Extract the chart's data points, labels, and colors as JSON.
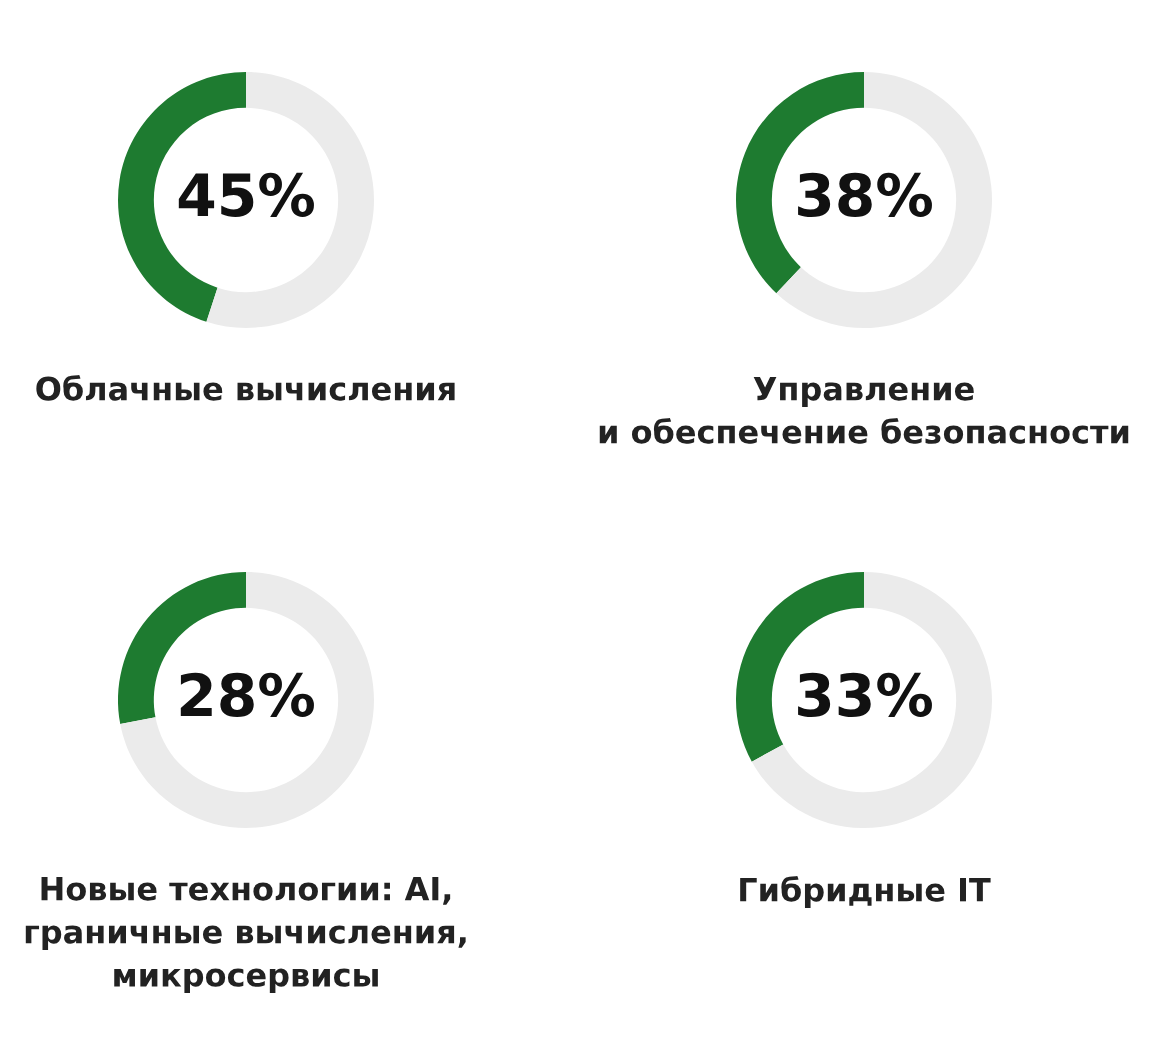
{
  "chart_data": [
    {
      "type": "donut",
      "title": "Облачные вычисления",
      "categories": [
        null,
        null
      ],
      "values": [
        45,
        55
      ],
      "colors": [
        "#1e7b30",
        "#ebebeb"
      ],
      "value_labels": [
        "45%",
        null
      ]
    },
    {
      "type": "donut",
      "title": "Управление\nи обеспечение безопасности",
      "categories": [
        null,
        null
      ],
      "values": [
        38,
        62
      ],
      "colors": [
        "#1e7b30",
        "#ebebeb"
      ],
      "value_labels": [
        "38%",
        null
      ]
    },
    {
      "type": "donut",
      "title": "Новые технологии: AI,\nграничные вычисления,\nмикросервисы",
      "categories": [
        null,
        null
      ],
      "values": [
        28,
        72
      ],
      "colors": [
        "#1e7b30",
        "#ebebeb"
      ],
      "value_labels": [
        "28%",
        null
      ]
    },
    {
      "type": "donut",
      "title": "Гибридные IT",
      "categories": [
        null,
        null
      ],
      "values": [
        33,
        67
      ],
      "colors": [
        "#1e7b30",
        "#ebebeb"
      ],
      "value_labels": [
        "33%",
        null
      ]
    }
  ]
}
